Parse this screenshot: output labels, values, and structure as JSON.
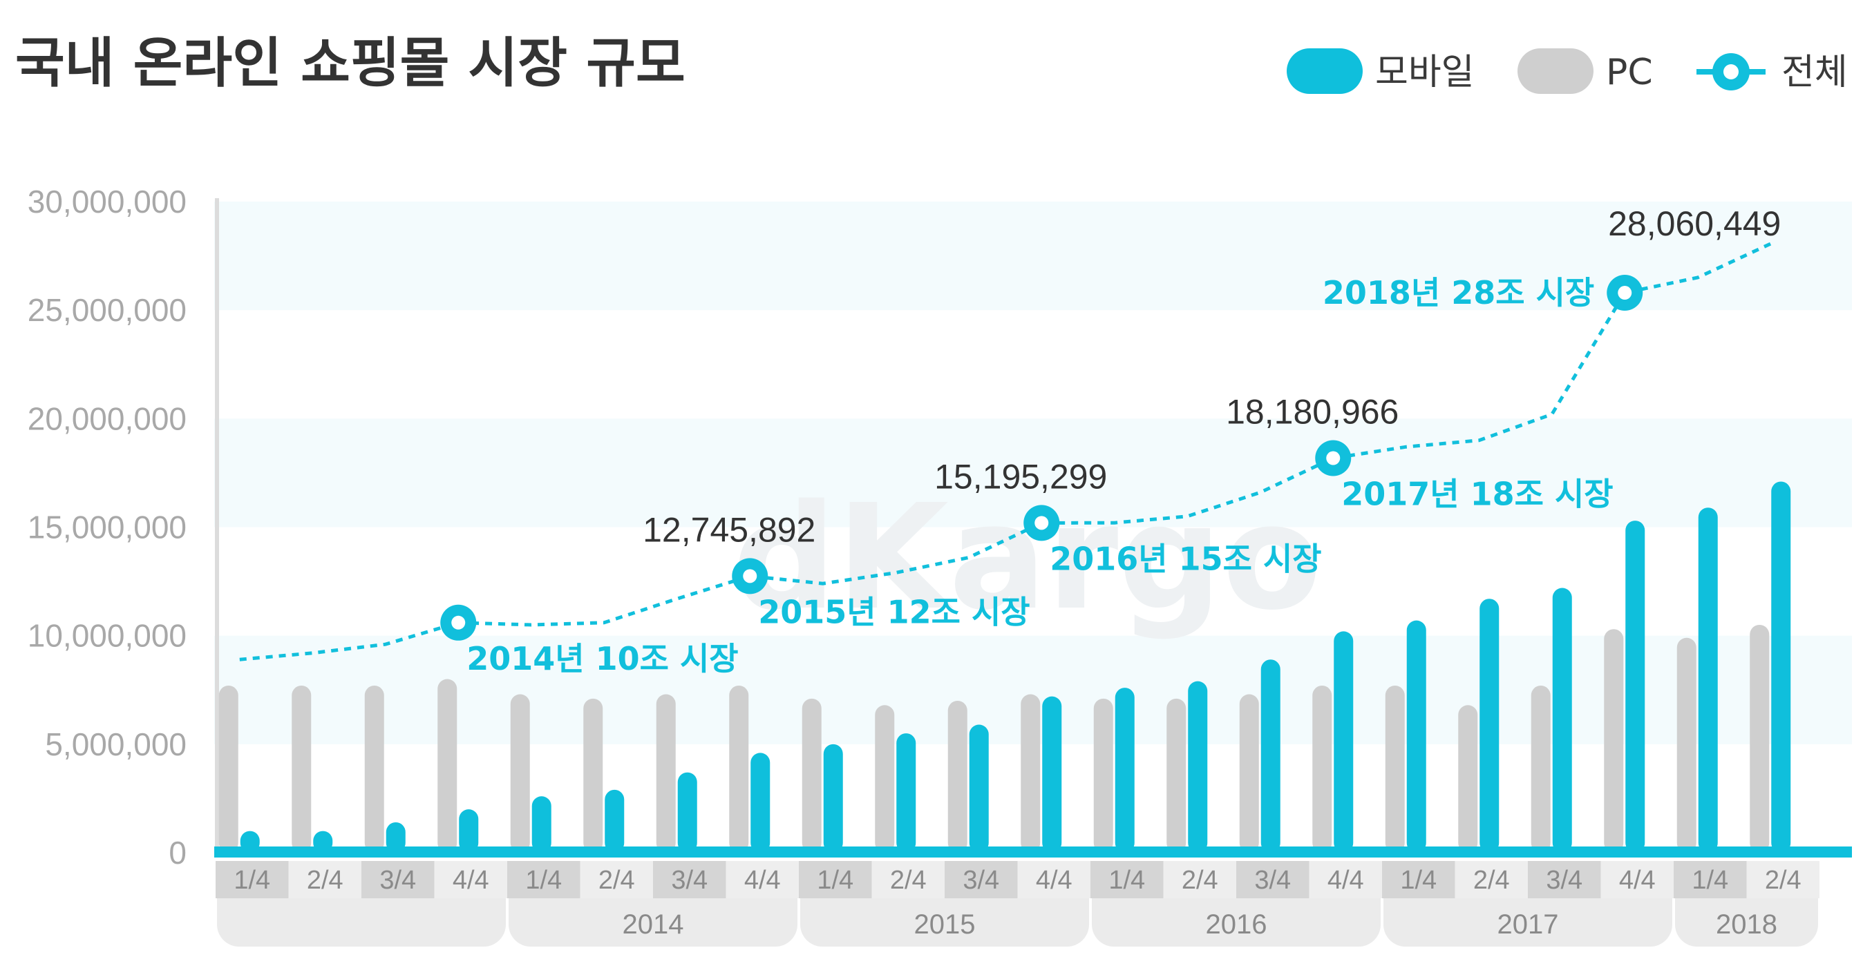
{
  "title": "국내 온라인 쇼핑몰 시장 규모",
  "watermark": "dKargo",
  "colors": {
    "mobile": "#0fbfdc",
    "pc": "#cfcfcf",
    "total": "#11bfdc",
    "band": "#f3fbfd"
  },
  "chart_data": {
    "type": "bar",
    "title": "국내 온라인 쇼핑몰 시장 규모",
    "xlabel": "",
    "ylabel": "",
    "ylim": [
      0,
      30000000
    ],
    "yticks": [
      "30,000,000",
      "25,000,000",
      "20,000,000",
      "15,000,000",
      "10,000,000",
      "5,000,000",
      "0"
    ],
    "quarters": [
      "1/4",
      "2/4",
      "3/4",
      "4/4",
      "1/4",
      "2/4",
      "3/4",
      "4/4",
      "1/4",
      "2/4",
      "3/4",
      "4/4",
      "1/4",
      "2/4",
      "3/4",
      "4/4",
      "1/4",
      "2/4",
      "3/4",
      "4/4",
      "1/4",
      "2/4"
    ],
    "years": [
      {
        "label": "",
        "quarters": 4
      },
      {
        "label": "2014",
        "quarters": 4
      },
      {
        "label": "2015",
        "quarters": 4
      },
      {
        "label": "2016",
        "quarters": 4
      },
      {
        "label": "2017",
        "quarters": 4
      },
      {
        "label": "2018",
        "quarters": 2
      }
    ],
    "legend": [
      "모바일",
      "PC",
      "전체"
    ],
    "legend_position": "top-right",
    "series": [
      {
        "name": "PC",
        "type": "bar",
        "values": [
          7700000,
          7700000,
          7700000,
          8000000,
          7300000,
          7100000,
          7300000,
          7700000,
          7100000,
          6800000,
          7000000,
          7300000,
          7100000,
          7100000,
          7300000,
          7700000,
          7700000,
          6800000,
          7700000,
          10300000,
          9900000,
          10500000
        ]
      },
      {
        "name": "모바일",
        "type": "bar",
        "values": [
          1000000,
          1000000,
          1400000,
          2000000,
          2600000,
          2900000,
          3700000,
          4600000,
          5000000,
          5500000,
          5900000,
          7200000,
          7600000,
          7900000,
          8900000,
          10200000,
          10700000,
          11700000,
          12200000,
          15300000,
          15900000,
          17100000
        ]
      },
      {
        "name": "전체",
        "type": "line",
        "values": [
          8900000,
          9200000,
          9600000,
          10600000,
          10500000,
          10600000,
          11700000,
          12745892,
          12400000,
          12900000,
          13600000,
          15195299,
          15200000,
          15500000,
          16600000,
          18180966,
          18700000,
          19000000,
          20200000,
          25800000,
          26500000,
          28060449
        ]
      }
    ],
    "markers": [
      {
        "index": 3,
        "annotation": "2014년 10조 시장",
        "value_label": ""
      },
      {
        "index": 7,
        "annotation": "2015년 12조 시장",
        "value_label": "12,745,892"
      },
      {
        "index": 11,
        "annotation": "2016년 15조 시장",
        "value_label": "15,195,299"
      },
      {
        "index": 15,
        "annotation": "2017년 18조 시장",
        "value_label": "18,180,966"
      },
      {
        "index": 19,
        "annotation": "2018년 28조 시장",
        "value_label": ""
      },
      {
        "index": 21,
        "annotation": "",
        "value_label": "28,060,449"
      }
    ],
    "grid": false
  }
}
